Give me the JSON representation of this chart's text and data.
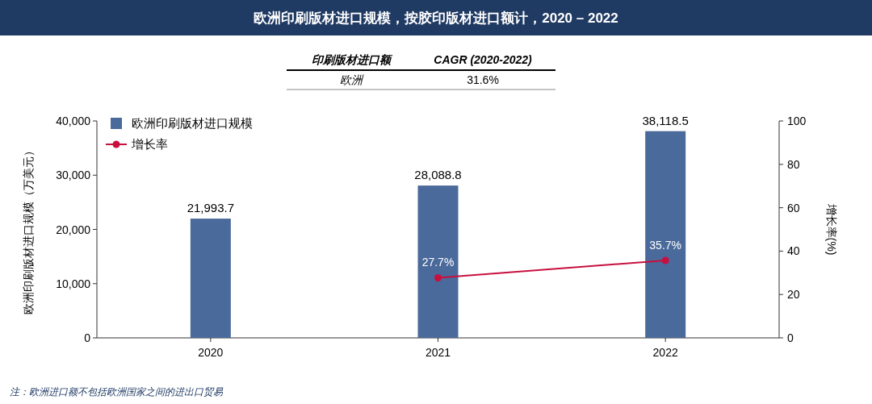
{
  "chart_data": {
    "type": "bar",
    "title": "欧洲印刷版材进口规模，按胶印版材进口额计，2020 – 2022",
    "ylabel": "欧洲印刷版材进口规模（万美元）",
    "y2label": "增长率(%)",
    "categories": [
      "2020",
      "2021",
      "2022"
    ],
    "series": [
      {
        "name": "欧洲印刷版材进口规模",
        "color": "#4a6a9b",
        "values": [
          21993.7,
          28088.8,
          38118.5
        ],
        "value_labels": [
          "21,993.7",
          "28,088.8",
          "38,118.5"
        ]
      },
      {
        "name": "增长率",
        "type": "line",
        "axis": "y2",
        "color": "#c8103e",
        "values": [
          null,
          27.7,
          35.7
        ],
        "value_labels": [
          null,
          "27.7%",
          "35.7%"
        ]
      }
    ],
    "ylim": [
      0,
      40000
    ],
    "yticks": [
      0,
      {
        "value": 10000,
        "label": "10,000"
      },
      {
        "value": 20000,
        "label": "20,000"
      },
      {
        "value": 30000,
        "label": "30,000"
      },
      {
        "value": 40000,
        "label": "40,000"
      }
    ],
    "y2lim": [
      0,
      100
    ],
    "y2ticks": [
      0,
      20,
      40,
      60,
      80,
      100
    ],
    "grid": false,
    "legend": "top left",
    "marker": "circle",
    "annotations": [
      "印刷版材进口额",
      "CAGR (2020-2022)",
      "欧洲",
      "31.6%",
      "注：欧洲进口额不包括欧洲国家之间的进出口贸易"
    ]
  }
}
